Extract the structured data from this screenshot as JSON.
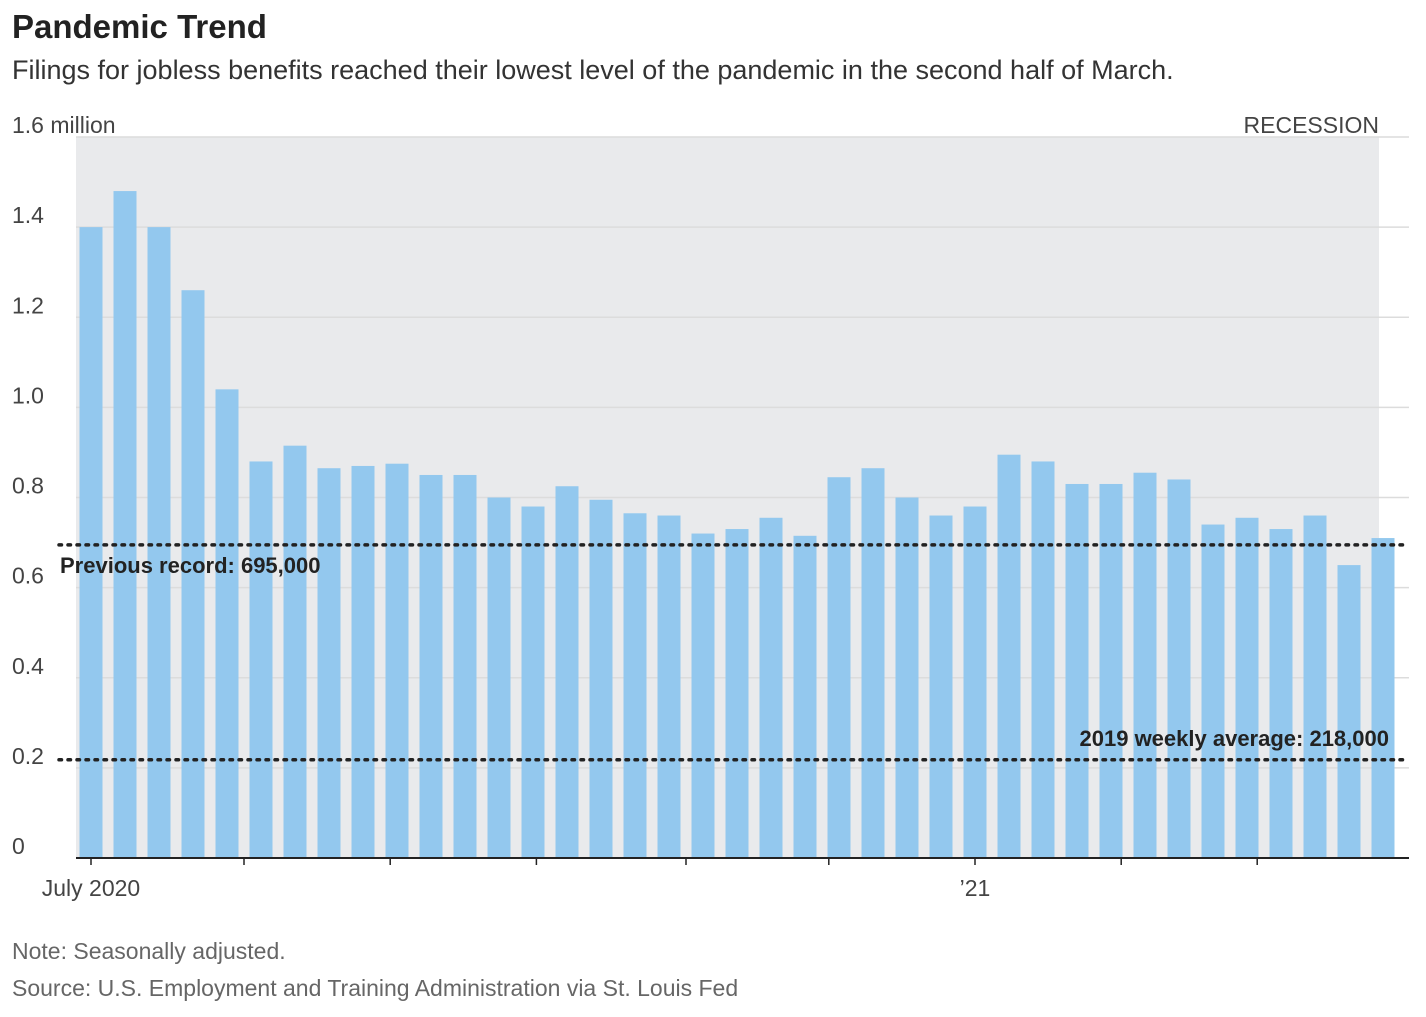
{
  "title": "Pandemic Trend",
  "subtitle": "Filings for jobless benefits reached their lowest level of the pandemic in the second half of March.",
  "note": "Note: Seasonally adjusted.",
  "source": "Source: U.S. Employment and Training Administration via St. Louis Fed",
  "colors": {
    "bar": "#93c8ee",
    "recession": "#e9eaec",
    "grid": "#dcdcdc",
    "axis": "#222222",
    "reference": "#222222"
  },
  "chart_data": {
    "type": "bar",
    "title": "Pandemic Trend",
    "ylabel": "",
    "xlabel": "",
    "ylim": [
      0,
      1.6
    ],
    "y_ticks": [
      {
        "value": 0,
        "label": "0"
      },
      {
        "value": 0.2,
        "label": "0.2"
      },
      {
        "value": 0.4,
        "label": "0.4"
      },
      {
        "value": 0.6,
        "label": "0.6"
      },
      {
        "value": 0.8,
        "label": "0.8"
      },
      {
        "value": 1.0,
        "label": "1.0"
      },
      {
        "value": 1.2,
        "label": "1.2"
      },
      {
        "value": 1.4,
        "label": "1.4"
      },
      {
        "value": 1.6,
        "label": "1.6 million"
      }
    ],
    "x_labels": [
      {
        "index": 0,
        "label": "July 2020"
      },
      {
        "index": 26,
        "label": "’21"
      }
    ],
    "x_ticks_at_index": [
      0,
      4.5,
      8.8,
      13.1,
      17.5,
      21.7,
      26,
      30.3,
      34.3
    ],
    "recession_label": "RECESSION",
    "grid": true,
    "values": [
      1.4,
      1.48,
      1.4,
      1.26,
      1.04,
      0.88,
      0.915,
      0.865,
      0.87,
      0.875,
      0.85,
      0.85,
      0.8,
      0.78,
      0.825,
      0.795,
      0.765,
      0.76,
      0.72,
      0.73,
      0.755,
      0.715,
      0.845,
      0.865,
      0.8,
      0.76,
      0.78,
      0.895,
      0.88,
      0.83,
      0.83,
      0.855,
      0.84,
      0.74,
      0.755,
      0.73,
      0.76,
      0.65,
      0.71
    ],
    "reference_lines": [
      {
        "value": 0.695,
        "label": "Previous record: 695,000",
        "label_position": "left-below"
      },
      {
        "value": 0.218,
        "label": "2019 weekly average: 218,000",
        "label_position": "right-above"
      }
    ]
  }
}
